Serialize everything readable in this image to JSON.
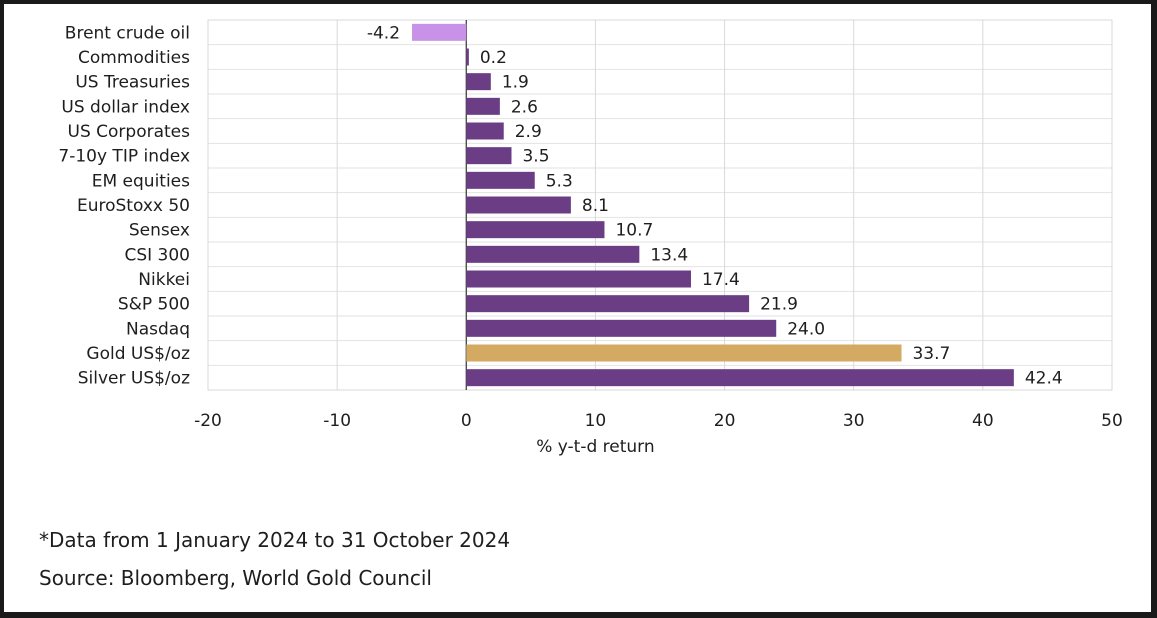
{
  "chart_data": {
    "type": "bar",
    "orientation": "horizontal",
    "categories": [
      "Brent crude oil",
      "Commodities",
      "US Treasuries",
      "US dollar index",
      "US Corporates",
      "7-10y TIP index",
      "EM equities",
      "EuroStoxx 50",
      "Sensex",
      "CSI 300",
      "Nikkei",
      "S&P 500",
      "Nasdaq",
      "Gold US$/oz",
      "Silver US$/oz"
    ],
    "values": [
      -4.2,
      0.2,
      1.9,
      2.6,
      2.9,
      3.5,
      5.3,
      8.1,
      10.7,
      13.4,
      17.4,
      21.9,
      24.0,
      33.7,
      42.4
    ],
    "value_labels": [
      "-4.2",
      "0.2",
      "1.9",
      "2.6",
      "2.9",
      "3.5",
      "5.3",
      "8.1",
      "10.7",
      "13.4",
      "17.4",
      "21.9",
      "24.0",
      "33.7",
      "42.4"
    ],
    "colors": {
      "default": "#6b3d84",
      "negative": "#c792e8",
      "highlight": "#d4aa62"
    },
    "highlight_category": "Gold US$/oz",
    "xlim": [
      -20,
      50
    ],
    "xticks": [
      -20,
      -10,
      0,
      10,
      20,
      30,
      40,
      50
    ],
    "xlabel": "% y-t-d return",
    "ylabel": "",
    "grid": true
  },
  "footnote": "*Data from 1 January 2024 to 31 October 2024",
  "source": "Source: Bloomberg, World Gold Council"
}
